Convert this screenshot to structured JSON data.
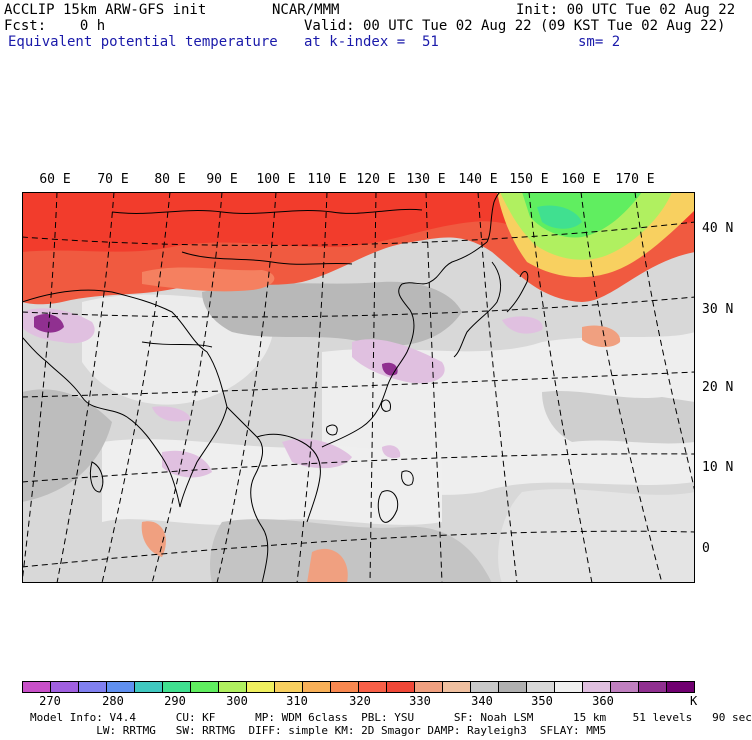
{
  "header": {
    "line1_left": "ACCLIP 15km ARW-GFS init",
    "line1_center": "NCAR/MMM",
    "line1_right": "Init: 00 UTC Tue 02 Aug 22",
    "line2_left": "Fcst:    0 h",
    "line2_right": "Valid: 00 UTC Tue 02 Aug 22 (09 KST Tue 02 Aug 22)",
    "line3_left": "Equivalent potential temperature",
    "line3_center": "at k-index =  51",
    "line3_right": "sm= 2"
  },
  "map": {
    "lon_labels": [
      "60 E",
      "70 E",
      "80 E",
      "90 E",
      "100 E",
      "110 E",
      "120 E",
      "130 E",
      "140 E",
      "150 E",
      "160 E",
      "170 E"
    ],
    "lat_labels": [
      "40 N",
      "30 N",
      "20 N",
      "10 N",
      "0"
    ],
    "projection": "mercator-like lat/lon grid, dashed",
    "field": "equivalent potential temperature"
  },
  "colorbar": {
    "colors": [
      "#c850c8",
      "#a060e0",
      "#8080f0",
      "#6090f0",
      "#40c8c0",
      "#40e090",
      "#60ee60",
      "#b0f060",
      "#f0f060",
      "#f8d060",
      "#f8b058",
      "#f88850",
      "#f86048",
      "#f04838",
      "#f0a080",
      "#f0c0a0",
      "#c8c8c8",
      "#b0b0b0",
      "#d8d8d8",
      "#f0f0f0",
      "#e0c0e0",
      "#c080c0",
      "#903090",
      "#700070"
    ],
    "tick_labels": [
      "270",
      "280",
      "290",
      "300",
      "310",
      "320",
      "330",
      "340",
      "350",
      "360"
    ],
    "unit": "K"
  },
  "footer": {
    "line1": "Model Info: V4.4      CU: KF      MP: WDM 6class  PBL: YSU      SF: Noah LSM      15 km    51 levels   90 sec",
    "line2": "          LW: RRTMG   SW: RRTMG  DIFF: simple KM: 2D Smagor DAMP: Rayleigh3  SFLAY: MM5"
  }
}
